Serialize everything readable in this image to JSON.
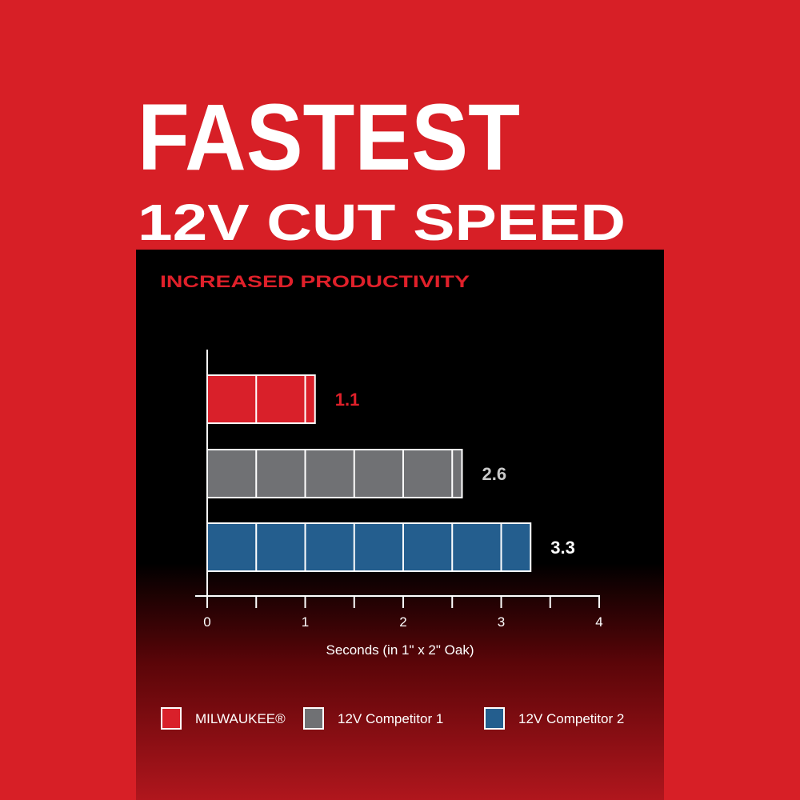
{
  "headline": {
    "line1": "FASTEST",
    "line2": "12V CUT SPEED"
  },
  "colors": {
    "background": "#d71f26",
    "panel": "#000000",
    "milwaukee": "#d9202a",
    "competitor1": "#707174",
    "competitor2": "#245e8e",
    "subtitle": "#e0202a"
  },
  "chart_data": {
    "type": "bar",
    "orientation": "horizontal",
    "title": "INCREASED PRODUCTIVITY",
    "xlabel": "Seconds (in 1\" x 2\" Oak)",
    "xlim": [
      0,
      4
    ],
    "xticks": [
      "0",
      "1",
      "2",
      "3",
      "4"
    ],
    "grid": false,
    "legend_placement": "bottom",
    "series": [
      {
        "name": "MILWAUKEE®",
        "value": 1.1,
        "label": "1.1",
        "color": "#d9202a",
        "label_color": "#e0202a"
      },
      {
        "name": "12V Competitor 1",
        "value": 2.6,
        "label": "2.6",
        "color": "#707174",
        "label_color": "#c9c9c9"
      },
      {
        "name": "12V Competitor 2",
        "value": 3.3,
        "label": "3.3",
        "color": "#245e8e",
        "label_color": "#ffffff"
      }
    ]
  }
}
